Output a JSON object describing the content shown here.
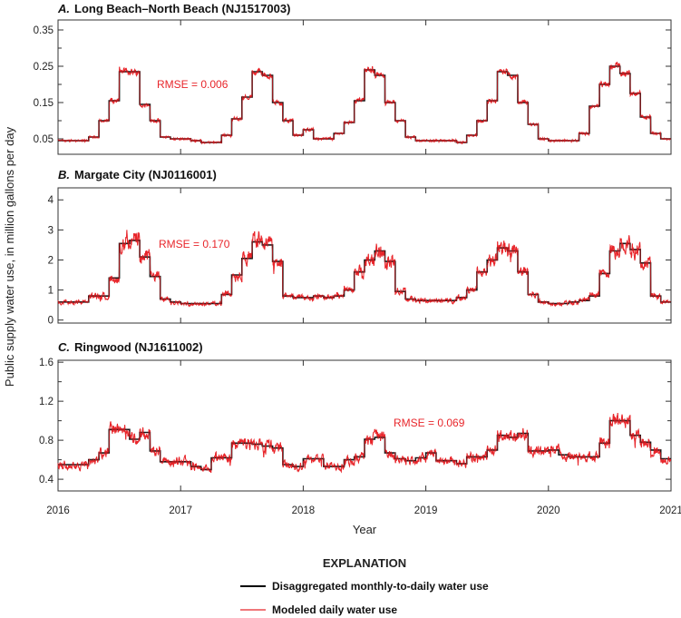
{
  "chart_data": {
    "type": "line",
    "xlabel": "Year",
    "ylabel": "Public supply water use, in million gallons per day",
    "x_ticks": [
      "2016",
      "2017",
      "2018",
      "2019",
      "2020",
      "2021"
    ],
    "xlim": [
      2016,
      2021
    ],
    "grid": false,
    "colors": {
      "disaggregated": "#000000",
      "modeled": "#e8262b"
    },
    "legend": {
      "title": "EXPLANATION",
      "placement": "bottom-center",
      "entries": [
        "Disaggregated monthly-to-daily water use",
        "Modeled daily water use"
      ]
    },
    "panels": [
      {
        "letter": "A.",
        "title": "Long Beach–North Beach (NJ1517003)",
        "rmse_label": "RMSE = 0.006",
        "ylim": [
          0.0075,
          0.3775
        ],
        "y_ticks": [
          "0.05",
          "0.15",
          "0.25",
          "0.35"
        ],
        "y_minor_ticks": [
          0.1,
          0.2,
          0.3
        ],
        "monthly_disaggregated": [
          0.045,
          0.045,
          0.045,
          0.055,
          0.1,
          0.155,
          0.235,
          0.235,
          0.145,
          0.1,
          0.055,
          0.05,
          0.05,
          0.045,
          0.04,
          0.04,
          0.06,
          0.105,
          0.165,
          0.235,
          0.225,
          0.15,
          0.1,
          0.06,
          0.075,
          0.05,
          0.05,
          0.065,
          0.095,
          0.155,
          0.24,
          0.225,
          0.15,
          0.1,
          0.055,
          0.045,
          0.045,
          0.045,
          0.045,
          0.04,
          0.06,
          0.1,
          0.155,
          0.235,
          0.225,
          0.15,
          0.09,
          0.05,
          0.045,
          0.045,
          0.045,
          0.065,
          0.14,
          0.2,
          0.25,
          0.23,
          0.175,
          0.11,
          0.065,
          0.05
        ]
      },
      {
        "letter": "B.",
        "title": "Margate City (NJ0116001)",
        "rmse_label": "RMSE = 0.170",
        "ylim": [
          -0.1,
          4.4
        ],
        "y_ticks": [
          "0",
          "1",
          "2",
          "3",
          "4"
        ],
        "y_minor_ticks": [],
        "monthly_disaggregated": [
          0.6,
          0.6,
          0.6,
          0.8,
          0.8,
          1.4,
          2.55,
          2.65,
          2.1,
          1.45,
          0.7,
          0.6,
          0.55,
          0.55,
          0.55,
          0.55,
          0.85,
          1.5,
          2.05,
          2.6,
          2.5,
          1.95,
          0.8,
          0.75,
          0.75,
          0.8,
          0.75,
          0.8,
          1.0,
          1.6,
          2.0,
          2.3,
          1.95,
          0.95,
          0.7,
          0.65,
          0.65,
          0.65,
          0.65,
          0.75,
          1.0,
          1.6,
          2.0,
          2.4,
          2.3,
          1.6,
          0.85,
          0.6,
          0.55,
          0.55,
          0.6,
          0.65,
          0.8,
          1.55,
          2.3,
          2.55,
          2.35,
          1.9,
          0.8,
          0.6
        ]
      },
      {
        "letter": "C.",
        "title": "Ringwood (NJ1611002)",
        "rmse_label": "RMSE = 0.069",
        "ylim": [
          0.28,
          1.62
        ],
        "y_ticks": [
          "0.4",
          "0.8",
          "1.2",
          "1.6"
        ],
        "y_minor_ticks": [
          0.6,
          1.0,
          1.4
        ],
        "monthly_disaggregated": [
          0.55,
          0.55,
          0.55,
          0.6,
          0.67,
          0.91,
          0.91,
          0.81,
          0.88,
          0.69,
          0.58,
          0.58,
          0.58,
          0.53,
          0.5,
          0.62,
          0.62,
          0.77,
          0.77,
          0.76,
          0.74,
          0.72,
          0.55,
          0.53,
          0.61,
          0.61,
          0.53,
          0.53,
          0.6,
          0.63,
          0.81,
          0.83,
          0.67,
          0.61,
          0.59,
          0.62,
          0.67,
          0.59,
          0.59,
          0.56,
          0.63,
          0.63,
          0.7,
          0.85,
          0.83,
          0.87,
          0.69,
          0.69,
          0.7,
          0.65,
          0.63,
          0.63,
          0.63,
          0.77,
          1.0,
          1.0,
          0.85,
          0.78,
          0.7,
          0.61
        ]
      }
    ]
  }
}
